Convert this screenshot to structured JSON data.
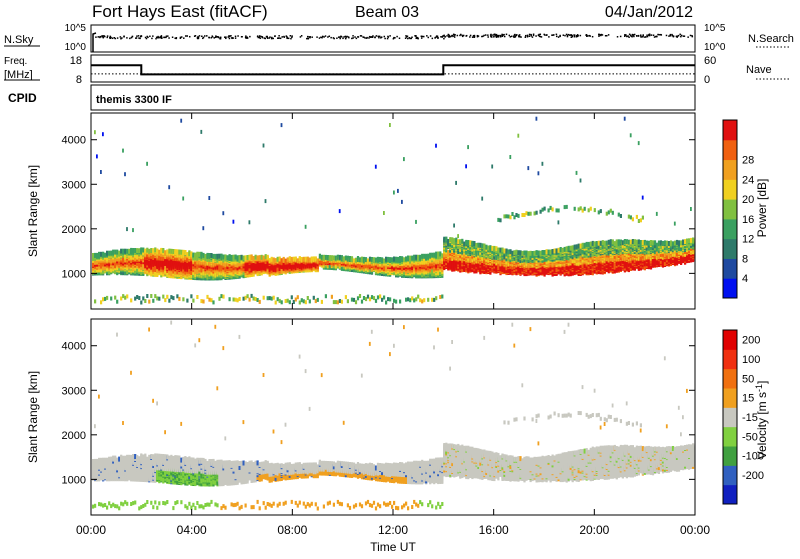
{
  "header": {
    "station": "Fort Hays East (fitACF)",
    "beam": "Beam 03",
    "date": "04/Jan/2012"
  },
  "top_panel": {
    "left_label": "N.Sky",
    "left_ticks": [
      "10^5",
      "10^0"
    ],
    "right_ticks": [
      "10^5",
      "10^0"
    ],
    "right_label": "N.Search",
    "series": [
      {
        "name": "N.Sky",
        "values": []
      },
      {
        "name": "N.Search",
        "values": []
      }
    ]
  },
  "freq_panel": {
    "left_label_1": "Freq.",
    "left_label_2": "[MHz]",
    "left_ticks": [
      "18",
      "8"
    ],
    "right_ticks": [
      "60",
      "0"
    ],
    "right_label": "Nave",
    "freq_series": {
      "x": [
        0,
        2.0,
        2.0,
        14.0,
        14.0,
        24
      ],
      "y": [
        14.2,
        14.2,
        10.8,
        10.8,
        14.2,
        14.2
      ]
    },
    "nave_series": {
      "x": [
        0,
        24
      ],
      "y": [
        18,
        18
      ]
    },
    "freq_range": [
      8,
      18
    ],
    "nave_range": [
      0,
      60
    ]
  },
  "cpid_panel": {
    "label": "CPID",
    "mode": "themis 3300 IF"
  },
  "chart_data": [
    {
      "type": "heatmap",
      "name": "power",
      "ylabel": "Slant Range [km]",
      "ylim": [
        200,
        4600
      ],
      "yticks": [
        "1000",
        "2000",
        "3000",
        "4000"
      ],
      "xlim": [
        0,
        24
      ],
      "colorbar": {
        "label": "Power [dB]",
        "ticks": [
          "4",
          "8",
          "12",
          "16",
          "20",
          "24",
          "28"
        ],
        "colors": [
          "#0010f0",
          "#1f4aa0",
          "#2e7a6a",
          "#3aa060",
          "#80c040",
          "#f0d020",
          "#f0a020",
          "#f06010",
          "#e01010"
        ]
      },
      "features": [
        {
          "segment": "echo band",
          "x": [
            0,
            14.0
          ],
          "range_km": [
            1000,
            1300
          ]
        },
        {
          "segment": "echo band",
          "x": [
            14.0,
            24
          ],
          "range_km": [
            1100,
            1800
          ]
        }
      ]
    },
    {
      "type": "heatmap",
      "name": "velocity",
      "ylabel": "Slant Range [km]",
      "ylim": [
        200,
        4600
      ],
      "yticks": [
        "1000",
        "2000",
        "3000",
        "4000"
      ],
      "xlim": [
        0,
        24
      ],
      "colorbar": {
        "label": "Velocity [m s",
        "label_sup": "-1",
        "label_end": "]",
        "ticks": [
          "200",
          "100",
          "50",
          "15",
          "-15",
          "-50",
          "-100",
          "-200"
        ],
        "colors": [
          "#1020c0",
          "#3060c0",
          "#40a040",
          "#80d040",
          "#c8c8c0",
          "#f0a020",
          "#f07010",
          "#f03010",
          "#e00000"
        ]
      }
    }
  ],
  "x_axis": {
    "label": "Time UT",
    "ticks": [
      "00:00",
      "04:00",
      "08:00",
      "12:00",
      "16:00",
      "20:00",
      "00:00"
    ]
  }
}
